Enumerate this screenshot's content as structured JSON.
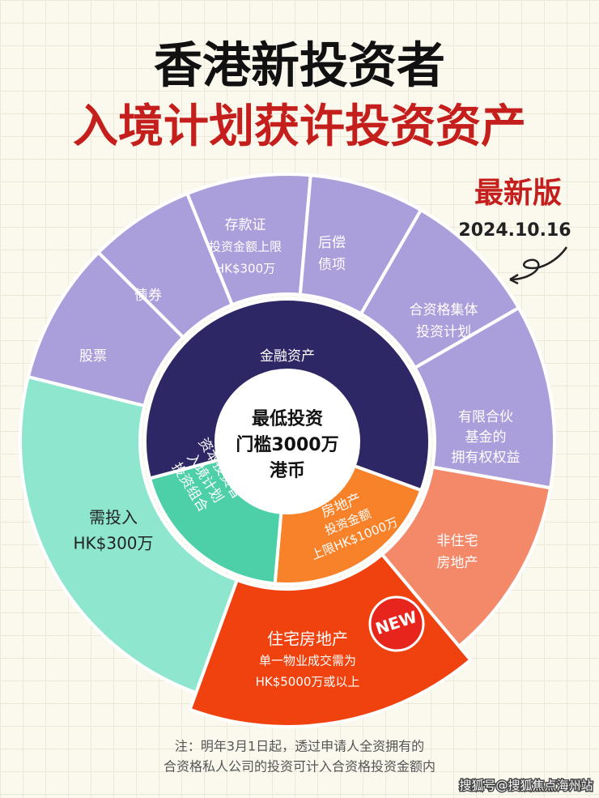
{
  "header": {
    "title_line1": "香港新投资者",
    "title_line2": "入境计划获许投资资产",
    "edition": "最新版",
    "date": "2024.10.16"
  },
  "center": {
    "lines": [
      "最低投资",
      "门槛3000万",
      "港币"
    ]
  },
  "inner_ring": [
    {
      "lines": [
        "金融资产"
      ]
    },
    {
      "lines": [
        "房地产",
        "投资金额",
        "上限HK$1000万"
      ]
    },
    {
      "lines": [
        "资本投资者",
        "入境计划",
        "投资组合"
      ]
    }
  ],
  "outer_ring": [
    {
      "lines": [
        "股票"
      ]
    },
    {
      "lines": [
        "债券"
      ]
    },
    {
      "lines": [
        "存款证",
        "投资金额上限",
        "HK$300万"
      ]
    },
    {
      "lines": [
        "后偿",
        "债项"
      ]
    },
    {
      "lines": [
        "合资格集体",
        "投资计划"
      ]
    },
    {
      "lines": [
        "有限合伙",
        "基金的",
        "拥有权权益"
      ]
    },
    {
      "lines": [
        "非住宅",
        "房地产"
      ]
    },
    {
      "lines": [
        "住宅房地产",
        "单一物业成交需为",
        "HK$5000万或以上"
      ]
    },
    {
      "lines": [
        "需投入",
        "HK$300万"
      ]
    }
  ],
  "badge": "NEW",
  "note": [
    "注：明年3月1日起，透过申请人全资拥有的",
    "合资格私人公司的投资可计入合资格投资金额内"
  ],
  "watermark": "搜狐号@搜狐焦点海州站"
}
